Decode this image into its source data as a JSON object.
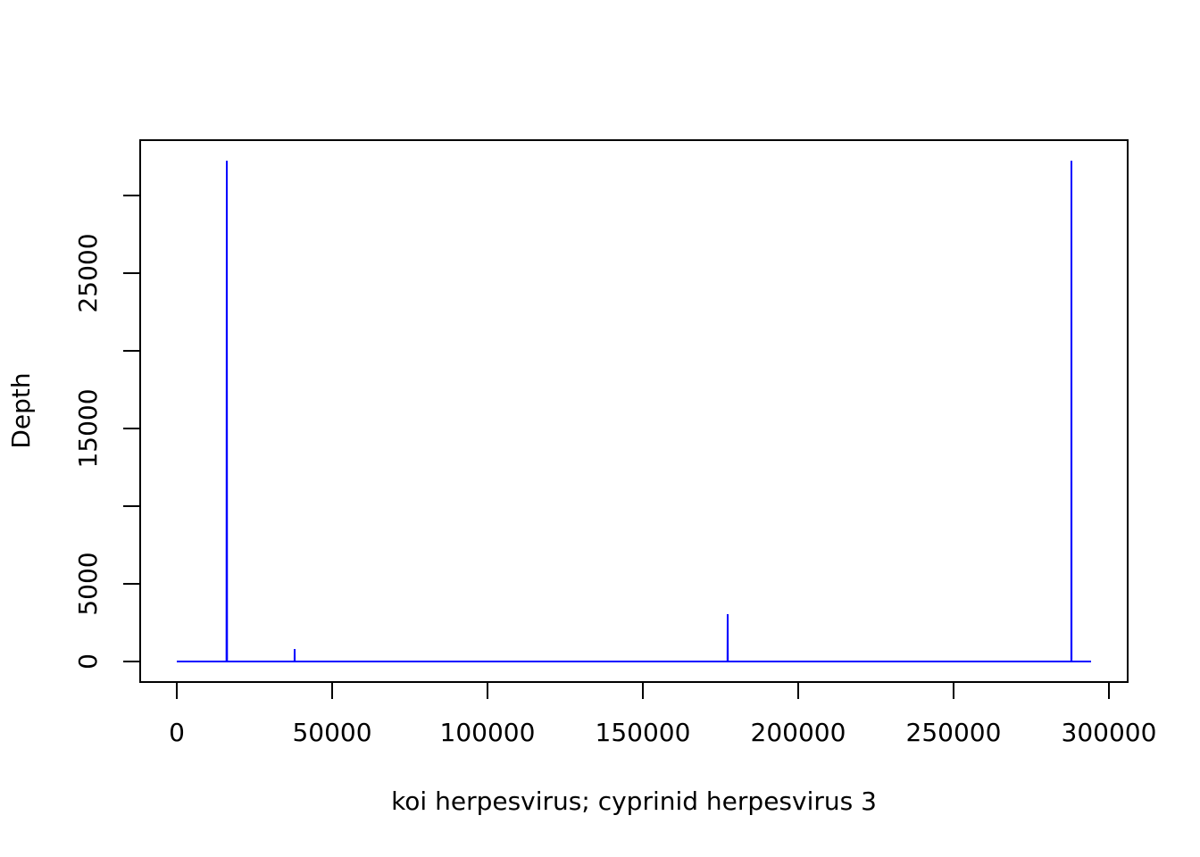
{
  "chart_data": {
    "type": "line",
    "xlabel": "koi herpesvirus; cyprinid herpesvirus 3",
    "ylabel": "Depth",
    "x": [
      0,
      16000,
      16092,
      16180,
      37900,
      37931,
      37960,
      177250,
      177300,
      177350,
      287900,
      287931,
      287960,
      294253
    ],
    "values": [
      0,
      0,
      32241,
      0,
      0,
      805,
      0,
      0,
      3046,
      0,
      0,
      32241,
      0,
      0
    ],
    "color": "#0000ff",
    "xlim": [
      -11782,
      306034
    ],
    "ylim": [
      -1322,
      33563
    ],
    "xticks": [
      0,
      50000,
      100000,
      150000,
      200000,
      250000,
      300000
    ],
    "yticks": [
      0,
      5000,
      {
        "value": 10000,
        "label": null
      },
      15000,
      {
        "value": 20000,
        "label": null
      },
      25000,
      {
        "value": 30000,
        "label": null
      }
    ],
    "grid": false
  }
}
